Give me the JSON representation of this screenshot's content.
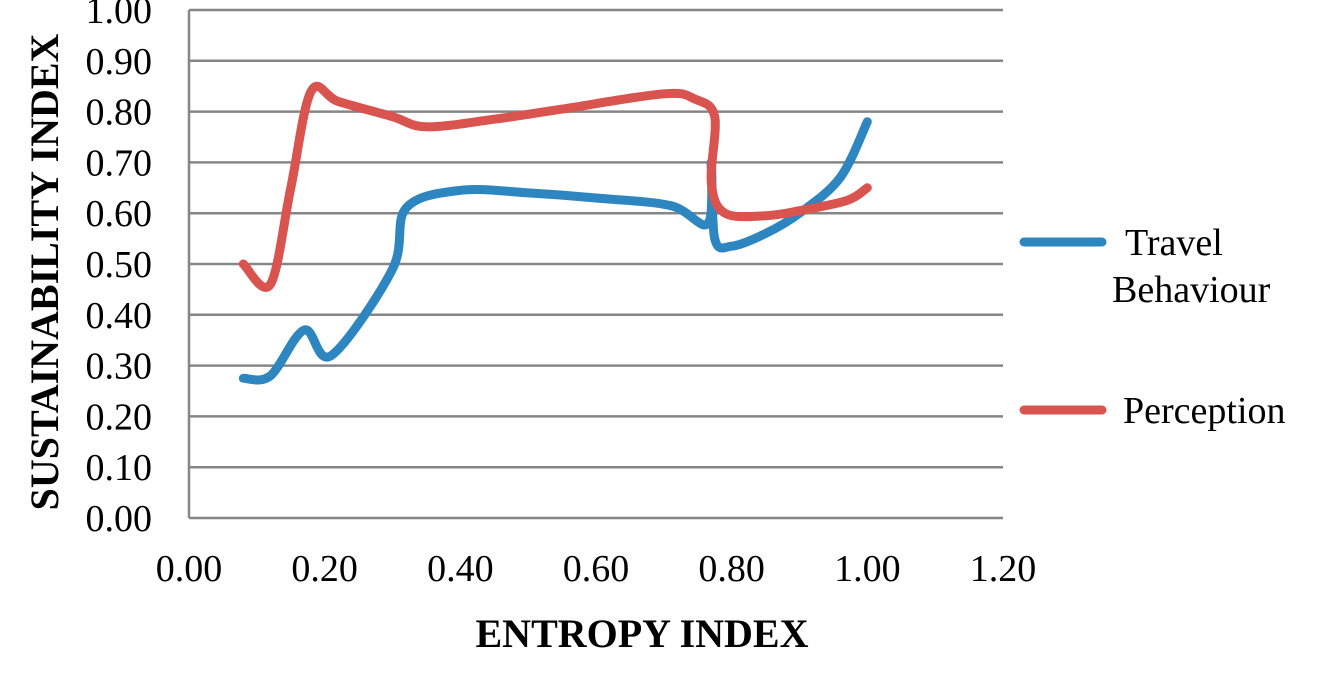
{
  "chart_data": {
    "type": "line",
    "title": "",
    "xlabel": "ENTROPY INDEX",
    "ylabel": "SUSTAINABILITY INDEX",
    "xlim": [
      0,
      1.2
    ],
    "ylim": [
      0,
      1.0
    ],
    "x_ticks": [
      "0.00",
      "0.20",
      "0.40",
      "0.60",
      "0.80",
      "1.00",
      "1.20"
    ],
    "y_ticks": [
      "0.00",
      "0.10",
      "0.20",
      "0.30",
      "0.40",
      "0.50",
      "0.60",
      "0.70",
      "0.80",
      "0.90",
      "1.00"
    ],
    "grid": "horizontal",
    "legend_position": "right",
    "smooth": true,
    "series": [
      {
        "name": "Travel Behaviour",
        "color": "#2E86C1",
        "points": [
          [
            0.08,
            0.275
          ],
          [
            0.12,
            0.28
          ],
          [
            0.17,
            0.37
          ],
          [
            0.21,
            0.32
          ],
          [
            0.3,
            0.49
          ],
          [
            0.32,
            0.61
          ],
          [
            0.4,
            0.645
          ],
          [
            0.5,
            0.64
          ],
          [
            0.6,
            0.63
          ],
          [
            0.71,
            0.615
          ],
          [
            0.765,
            0.58
          ],
          [
            0.77,
            0.7
          ],
          [
            0.775,
            0.55
          ],
          [
            0.8,
            0.535
          ],
          [
            0.85,
            0.56
          ],
          [
            0.9,
            0.6
          ],
          [
            0.96,
            0.67
          ],
          [
            1.0,
            0.78
          ]
        ]
      },
      {
        "name": "Perception",
        "color": "#D9534F",
        "points": [
          [
            0.08,
            0.5
          ],
          [
            0.12,
            0.46
          ],
          [
            0.15,
            0.65
          ],
          [
            0.18,
            0.84
          ],
          [
            0.22,
            0.82
          ],
          [
            0.3,
            0.79
          ],
          [
            0.35,
            0.77
          ],
          [
            0.45,
            0.785
          ],
          [
            0.55,
            0.805
          ],
          [
            0.7,
            0.835
          ],
          [
            0.745,
            0.825
          ],
          [
            0.775,
            0.79
          ],
          [
            0.77,
            0.66
          ],
          [
            0.79,
            0.6
          ],
          [
            0.85,
            0.595
          ],
          [
            0.9,
            0.605
          ],
          [
            0.97,
            0.625
          ],
          [
            1.0,
            0.65
          ]
        ]
      }
    ]
  }
}
